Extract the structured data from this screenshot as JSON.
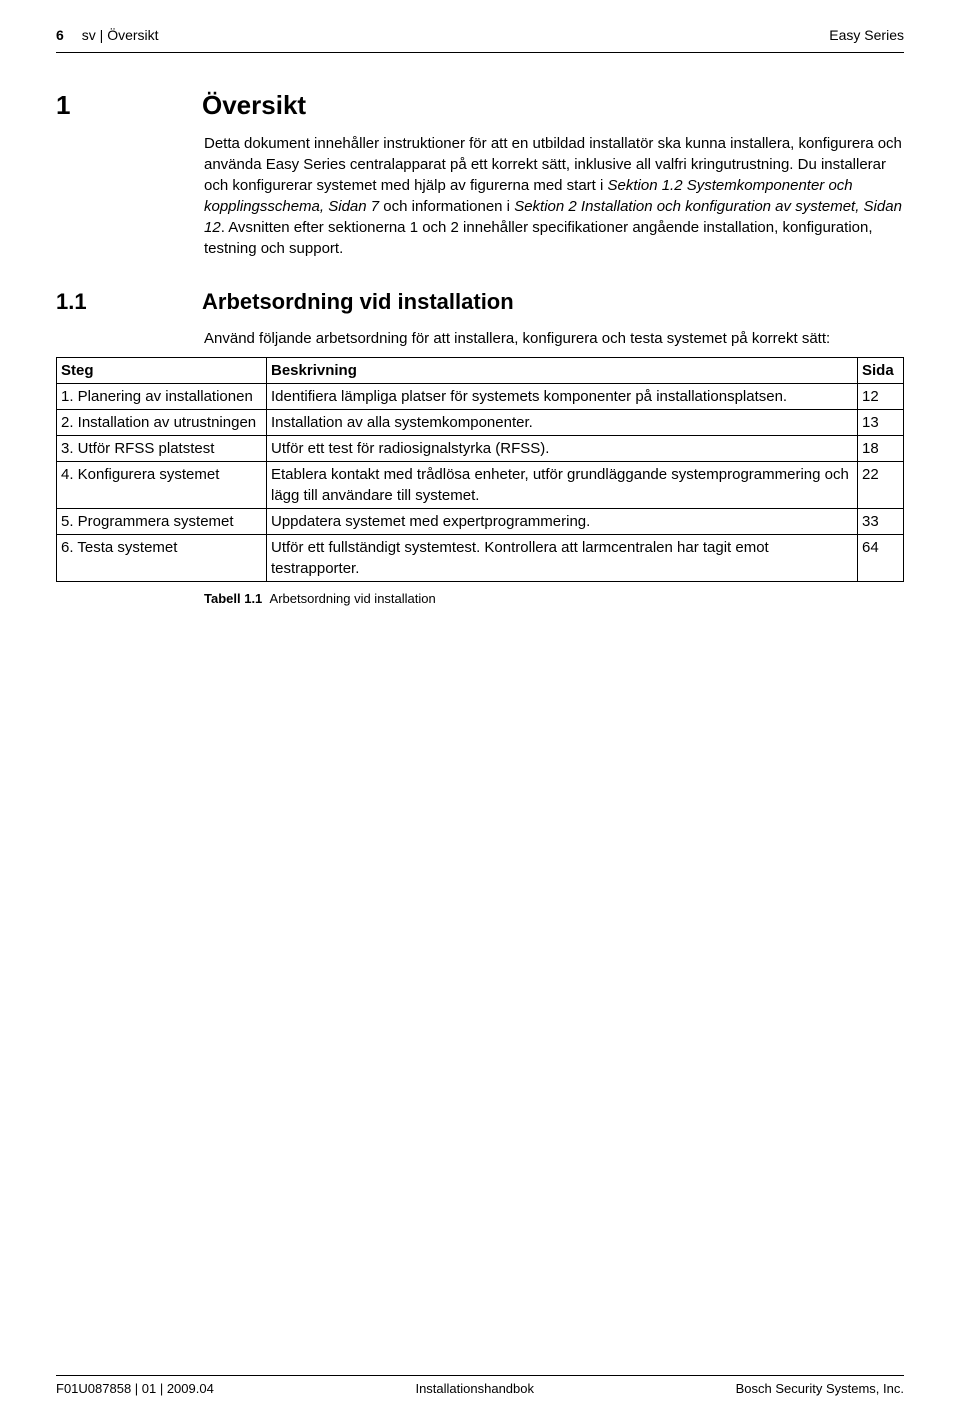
{
  "header": {
    "page_number": "6",
    "breadcrumb": "sv | Översikt",
    "product": "Easy Series"
  },
  "chapter": {
    "number": "1",
    "title": "Översikt",
    "para1a": "Detta dokument innehåller instruktioner för att en utbildad installatör ska kunna installera, konfigurera och använda Easy Series centralapparat på ett korrekt sätt, inklusive all valfri kringutrustning. Du installerar och konfigurerar systemet med hjälp av figurerna med start i ",
    "para1b": "Sektion 1.2 Systemkomponenter och kopplingsschema, Sidan 7",
    "para1c": " och informationen i ",
    "para1d": "Sektion 2 Installation och konfiguration av systemet, Sidan 12",
    "para1e": ". Avsnitten efter sektionerna 1 och 2 innehåller specifikationer angående installation, konfiguration, testning och support."
  },
  "section": {
    "number": "1.1",
    "title": "Arbetsordning vid installation",
    "intro": "Använd följande arbetsordning för att installera, konfigurera och testa systemet på korrekt sätt:"
  },
  "table": {
    "headers": {
      "steg": "Steg",
      "beskrivning": "Beskrivning",
      "sida": "Sida"
    },
    "rows": [
      {
        "steg": "1. Planering av installationen",
        "beskrivning": "Identifiera lämpliga platser för systemets komponenter på installationsplatsen.",
        "sida": "12"
      },
      {
        "steg": "2. Installation av utrustningen",
        "beskrivning": "Installation av alla systemkomponenter.",
        "sida": "13"
      },
      {
        "steg": "3. Utför RFSS platstest",
        "beskrivning": "Utför ett test för radiosignalstyrka (RFSS).",
        "sida": "18"
      },
      {
        "steg": "4. Konfigurera systemet",
        "beskrivning": "Etablera kontakt med trådlösa enheter, utför grundläggande systemprogrammering och lägg till användare till systemet.",
        "sida": "22"
      },
      {
        "steg": "5. Programmera systemet",
        "beskrivning": "Uppdatera systemet med expertprogrammering.",
        "sida": "33"
      },
      {
        "steg": "6. Testa systemet",
        "beskrivning": "Utför ett fullständigt systemtest. Kontrollera att larmcentralen har tagit emot testrapporter.",
        "sida": "64"
      }
    ]
  },
  "caption": {
    "label": "Tabell 1.1",
    "text": "Arbetsordning vid installation"
  },
  "footer": {
    "left": "F01U087858 | 01 | 2009.04",
    "center": "Installationshandbok",
    "right": "Bosch Security Systems, Inc."
  }
}
